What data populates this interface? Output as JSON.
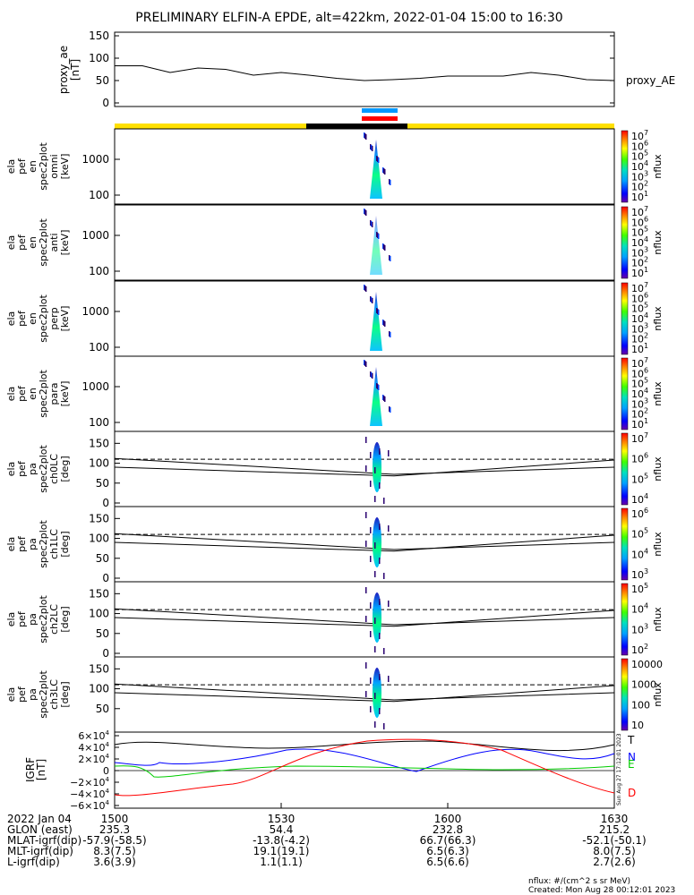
{
  "title": "PRELIMINARY ELFIN-A EPDE, alt=422km, 2022-01-04 15:00 to 16:30",
  "proxy_ae": {
    "ylabel": "proxy_ae",
    "unit": "[nT]",
    "series_label": "proxy_AE",
    "ylim": [
      0,
      150
    ],
    "ticks": [
      "0",
      "50",
      "100",
      "150"
    ],
    "x": [
      0,
      5,
      10,
      15,
      20,
      25,
      30,
      35,
      40,
      45,
      50,
      55,
      60,
      65,
      70,
      75,
      80,
      85,
      90
    ],
    "values": [
      83,
      83,
      68,
      78,
      75,
      62,
      68,
      62,
      55,
      50,
      52,
      55,
      60,
      60,
      60,
      68,
      62,
      52,
      50
    ]
  },
  "status_bar": {
    "colors": [
      "#ffff00",
      "#000000",
      "#ffff00"
    ]
  },
  "science_zones": {
    "colors": [
      "#0099ff",
      "#ff0000"
    ]
  },
  "spectrogram_panels": [
    {
      "labels": [
        "ela",
        "pef",
        "en",
        "spec2plot",
        "omni",
        "[keV]"
      ],
      "ticks": [
        "1000",
        "100"
      ],
      "cb_label": "nflux",
      "cb_ticks": [
        "10",
        "10",
        "10",
        "10",
        "10",
        "10",
        "10"
      ],
      "cb_exp": [
        "7",
        "6",
        "5",
        "4",
        "3",
        "2",
        "1"
      ]
    },
    {
      "labels": [
        "ela",
        "pef",
        "en",
        "spec2plot",
        "anti",
        "[keV]"
      ],
      "ticks": [
        "1000",
        "100"
      ],
      "cb_label": "nflux",
      "cb_ticks": [
        "10",
        "10",
        "10",
        "10",
        "10",
        "10",
        "10"
      ],
      "cb_exp": [
        "7",
        "6",
        "5",
        "4",
        "3",
        "2",
        "1"
      ]
    },
    {
      "labels": [
        "ela",
        "pef",
        "en",
        "spec2plot",
        "perp",
        "[keV]"
      ],
      "ticks": [
        "1000",
        "100"
      ],
      "cb_label": "nflux",
      "cb_ticks": [
        "10",
        "10",
        "10",
        "10",
        "10",
        "10",
        "10"
      ],
      "cb_exp": [
        "7",
        "6",
        "5",
        "4",
        "3",
        "2",
        "1"
      ]
    },
    {
      "labels": [
        "ela",
        "pef",
        "en",
        "spec2plot",
        "para",
        "[keV]"
      ],
      "ticks": [
        "1000",
        "100"
      ],
      "cb_label": "nflux",
      "cb_ticks": [
        "10",
        "10",
        "10",
        "10",
        "10",
        "10",
        "10"
      ],
      "cb_exp": [
        "7",
        "6",
        "5",
        "4",
        "3",
        "2",
        "1"
      ]
    }
  ],
  "pitch_panels": [
    {
      "labels": [
        "ela",
        "pef",
        "pa",
        "spec2plot",
        "ch0LC",
        "[deg]"
      ],
      "ticks": [
        "150",
        "100",
        "50",
        "0"
      ],
      "cb_label": "nflux",
      "cb_ticks": [
        "10",
        "10",
        "10",
        "10"
      ],
      "cb_exp": [
        "7",
        "6",
        "5",
        "4"
      ]
    },
    {
      "labels": [
        "ela",
        "pef",
        "pa",
        "spec2plot",
        "ch1LC",
        "[deg]"
      ],
      "ticks": [
        "150",
        "100",
        "50",
        "0"
      ],
      "cb_label": "nflux",
      "cb_ticks": [
        "10",
        "10",
        "10",
        "10"
      ],
      "cb_exp": [
        "6",
        "5",
        "4",
        "3"
      ]
    },
    {
      "labels": [
        "ela",
        "pef",
        "pa",
        "spec2plot",
        "ch2LC",
        "[deg]"
      ],
      "ticks": [
        "150",
        "100",
        "50",
        "0"
      ],
      "cb_label": "nflux",
      "cb_ticks": [
        "10",
        "10",
        "10",
        "10"
      ],
      "cb_exp": [
        "5",
        "4",
        "3",
        "2"
      ]
    },
    {
      "labels": [
        "ela",
        "pef",
        "pa",
        "spec2plot",
        "ch3LC",
        "[deg]"
      ],
      "ticks": [
        "150",
        "100",
        "50"
      ],
      "cb_label": "nflux",
      "cb_ticks": [
        "10000",
        "1000",
        "100",
        "10"
      ],
      "cb_exp": [
        "",
        "",
        "",
        ""
      ]
    }
  ],
  "igrf": {
    "ylabel": "IGRF",
    "unit": "[nT]",
    "ticks": [
      "6×10",
      "4×10",
      "2×10",
      "0",
      "−2×10",
      "−4×10",
      "−6×10"
    ],
    "tick_exp": "4",
    "component_labels": [
      "T",
      "N",
      "E",
      "D"
    ],
    "component_colors": [
      "#000000",
      "#0000ff",
      "#00cc00",
      "#ff0000"
    ],
    "side_text": "Sun Aug 27 17:12:01 2023"
  },
  "x_axis": {
    "tick_labels": [
      "1500",
      "1530",
      "1600",
      "1630"
    ],
    "rows": [
      {
        "label": "2022 Jan 04",
        "values": [
          "1500",
          "1530",
          "1600",
          "1630"
        ]
      },
      {
        "label": "GLON (east)",
        "values": [
          "235.3",
          "54.4",
          "232.8",
          "215.2"
        ]
      },
      {
        "label": "MLAT-igrf(dip)",
        "values": [
          "-57.9(-58.5)",
          "-13.8(-4.2)",
          "66.7(66.3)",
          "-52.1(-50.1)"
        ]
      },
      {
        "label": "MLT-igrf(dip)",
        "values": [
          "8.3(7.5)",
          "19.1(19.1)",
          "6.5(6.3)",
          "8.0(7.5)"
        ]
      },
      {
        "label": "L-igrf(dip)",
        "values": [
          "3.6(3.9)",
          "1.1(1.1)",
          "6.5(6.6)",
          "2.7(2.6)"
        ]
      }
    ]
  },
  "footer": {
    "units": "nflux: #/(cm^2 s sr MeV)",
    "created": "Created: Mon Aug 28 00:12:01 2023"
  },
  "chart_data": [
    {
      "type": "line",
      "title": "PRELIMINARY ELFIN-A EPDE, alt=422km, 2022-01-04 15:00 to 16:30",
      "ylabel": "proxy_ae [nT]",
      "ylim": [
        0,
        150
      ],
      "series": [
        {
          "name": "proxy_AE",
          "values": [
            83,
            83,
            68,
            78,
            75,
            62,
            68,
            62,
            55,
            50,
            52,
            55,
            60,
            60,
            60,
            68,
            62,
            52,
            50
          ]
        }
      ]
    },
    {
      "type": "heatmap",
      "ylabel": "ela pef en spec2plot omni [keV]",
      "colorbar": "nflux"
    },
    {
      "type": "heatmap",
      "ylabel": "ela pef en spec2plot anti [keV]",
      "colorbar": "nflux"
    },
    {
      "type": "heatmap",
      "ylabel": "ela pef en spec2plot perp [keV]",
      "colorbar": "nflux"
    },
    {
      "type": "heatmap",
      "ylabel": "ela pef en spec2plot para [keV]",
      "colorbar": "nflux"
    },
    {
      "type": "heatmap",
      "ylabel": "ela pef pa spec2plot ch0LC [deg]",
      "ylim": [
        0,
        180
      ],
      "colorbar": "nflux"
    },
    {
      "type": "heatmap",
      "ylabel": "ela pef pa spec2plot ch1LC [deg]",
      "ylim": [
        0,
        180
      ],
      "colorbar": "nflux"
    },
    {
      "type": "heatmap",
      "ylabel": "ela pef pa spec2plot ch2LC [deg]",
      "ylim": [
        0,
        180
      ],
      "colorbar": "nflux"
    },
    {
      "type": "heatmap",
      "ylabel": "ela pef pa spec2plot ch3LC [deg]",
      "ylim": [
        0,
        180
      ],
      "colorbar": "nflux"
    },
    {
      "type": "line",
      "ylabel": "IGRF [nT]",
      "ylim": [
        -60000,
        60000
      ],
      "series": [
        {
          "name": "T"
        },
        {
          "name": "N"
        },
        {
          "name": "E"
        },
        {
          "name": "D"
        }
      ]
    }
  ]
}
